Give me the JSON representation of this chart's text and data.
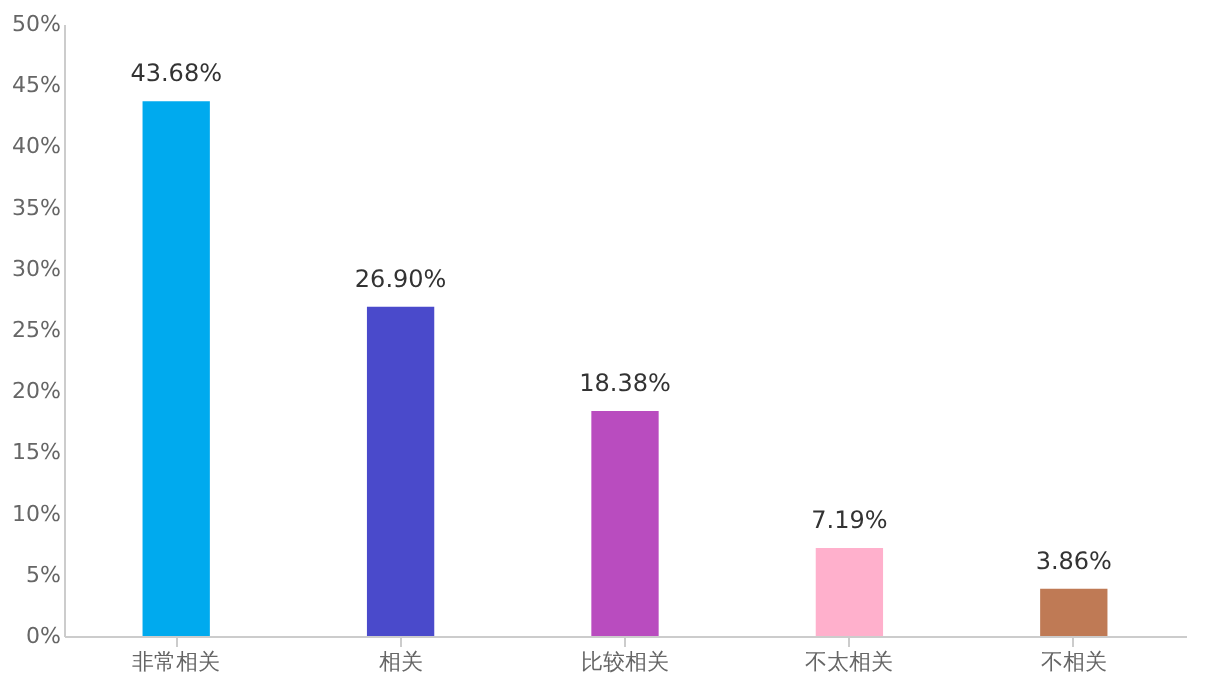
{
  "chart_data": {
    "type": "bar",
    "categories": [
      "非常相关",
      "相关",
      "比较相关",
      "不太相关",
      "不相关"
    ],
    "values": [
      43.68,
      26.9,
      18.38,
      7.19,
      3.86
    ],
    "colors": [
      "#00aaee",
      "#4a4acb",
      "#b94cbf",
      "#ffb0cc",
      "#bf7a55"
    ],
    "value_labels": [
      "43.68%",
      "26.90%",
      "18.38%",
      "7.19%",
      "3.86%"
    ],
    "ylim": [
      0,
      50
    ],
    "yticks": [
      {
        "value": 0,
        "label": "0%"
      },
      {
        "value": 5,
        "label": "5%"
      },
      {
        "value": 10,
        "label": "10%"
      },
      {
        "value": 15,
        "label": "15%"
      },
      {
        "value": 20,
        "label": "20%"
      },
      {
        "value": 25,
        "label": "25%"
      },
      {
        "value": 30,
        "label": "30%"
      },
      {
        "value": 35,
        "label": "35%"
      },
      {
        "value": 40,
        "label": "40%"
      },
      {
        "value": 45,
        "label": "45%"
      },
      {
        "value": 50,
        "label": "50%"
      }
    ],
    "grid": false
  }
}
